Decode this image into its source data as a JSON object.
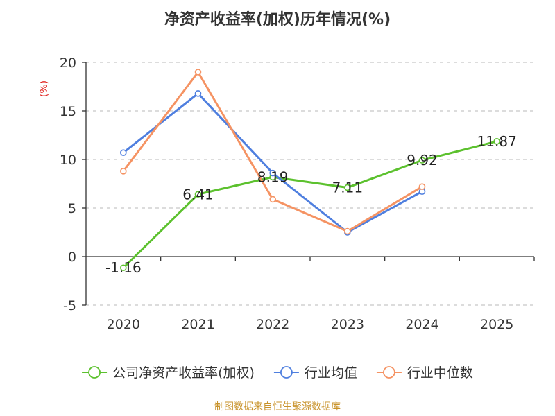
{
  "chart_data": {
    "type": "line",
    "title": "净资产收益率(加权)历年情况(%)",
    "ylabel": "(%)",
    "xlabel": "",
    "categories": [
      "2020",
      "2021",
      "2022",
      "2023",
      "2024",
      "2025"
    ],
    "ylim": [
      -5,
      20
    ],
    "yticks": [
      -5,
      0,
      5,
      10,
      15,
      20
    ],
    "grid": true,
    "legend_position": "bottom",
    "series": [
      {
        "name": "公司净资产收益率(加权)",
        "color": "#5cc12e",
        "values": [
          -1.16,
          6.41,
          8.19,
          7.11,
          9.92,
          11.87
        ],
        "labels": [
          "-1.16",
          "6.41",
          "8.19",
          "7.11",
          "9.92",
          "11.87"
        ]
      },
      {
        "name": "行业均值",
        "color": "#4f7fdf",
        "values": [
          10.7,
          16.8,
          8.6,
          2.5,
          6.7,
          null
        ]
      },
      {
        "name": "行业中位数",
        "color": "#f59363",
        "values": [
          8.8,
          19.0,
          5.9,
          2.6,
          7.2,
          null
        ]
      }
    ],
    "source": "制图数据来自恒生聚源数据库"
  }
}
